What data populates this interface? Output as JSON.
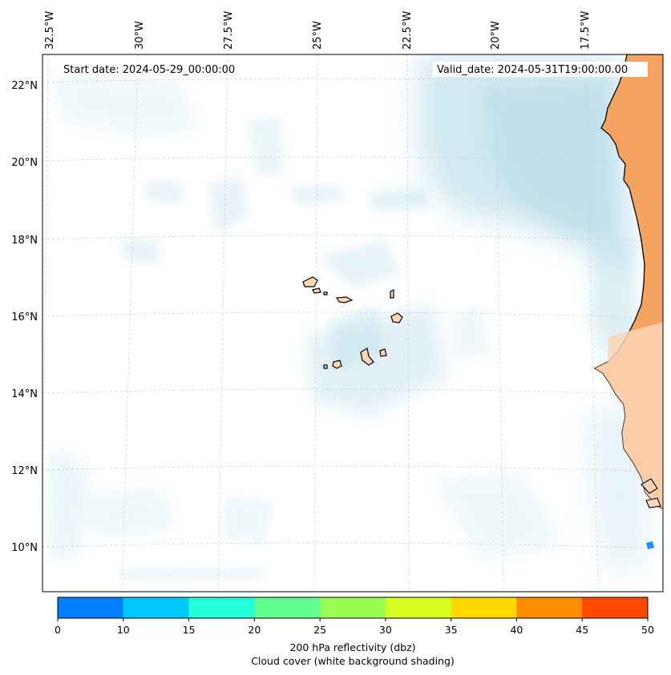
{
  "map": {
    "start_date": "Start date: 2024-05-29_00:00:00",
    "valid_date": "Valid_date: 2024-05-31T19:00:00.00",
    "longitude_labels": [
      "32.5°W",
      "30°W",
      "27.5°W",
      "25°W",
      "22.5°W",
      "20°W",
      "17.5°W"
    ],
    "latitude_labels": [
      "22°N",
      "20°N",
      "18°N",
      "16°N",
      "14°N",
      "12°N",
      "10°N"
    ],
    "colors": {
      "land": "#f4a460",
      "land_light": "#fbd5b5",
      "cloud": "#add8e6",
      "coastline": "#000000",
      "reflectivity_spot": "#1e90ff"
    }
  },
  "colorbar": {
    "ticks": [
      "0",
      "10",
      "15",
      "20",
      "25",
      "30",
      "35",
      "40",
      "45",
      "50"
    ],
    "colors": [
      "#0080ff",
      "#00c8ff",
      "#20ffd8",
      "#60ff90",
      "#98ff50",
      "#d8ff20",
      "#ffd800",
      "#ff8c00",
      "#ff4800"
    ],
    "label_line1": "200 hPa reflectivity (dbz)",
    "label_line2": "Cloud cover (white background shading)"
  }
}
